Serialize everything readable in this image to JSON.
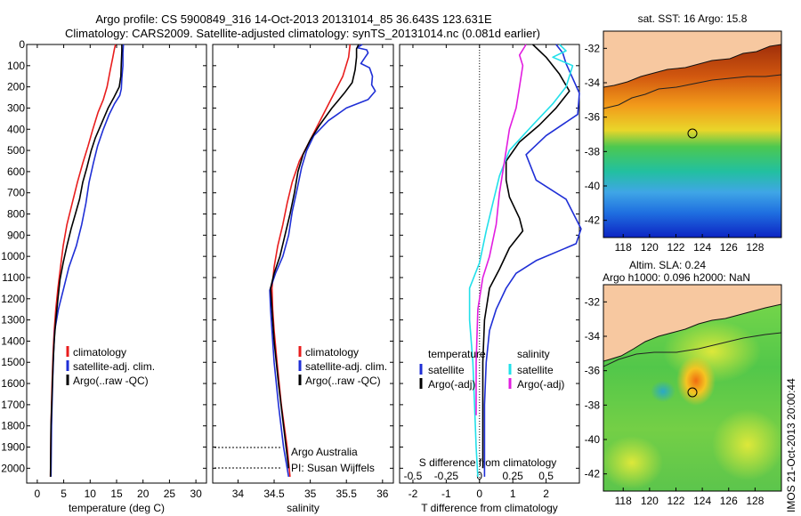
{
  "header": {
    "title_line1": "Argo profile: CS 5900849_316 14-Oct-2013 20131014_85 36.643S 123.631E",
    "title_line2": "Climatology: CARS2009. Satellite-adjusted climatology: synTS_20131014.nc (0.081d earlier)"
  },
  "colors": {
    "climatology": "#e81d1d",
    "satellite": "#1f2fd6",
    "argo": "#000000",
    "s_satellite": "#22e0ea",
    "s_argo": "#e21de0",
    "land": "#f7c8a0"
  },
  "chart_data": [
    {
      "type": "line",
      "panel": "temperature",
      "xlabel": "temperature (deg C)",
      "xlim": [
        -2,
        32
      ],
      "xticks": [
        0,
        5,
        10,
        15,
        20,
        25,
        30
      ],
      "ylim": [
        2070,
        0
      ],
      "yticks": [
        0,
        100,
        200,
        300,
        400,
        500,
        600,
        700,
        800,
        900,
        1000,
        1100,
        1200,
        1300,
        1400,
        1500,
        1600,
        1700,
        1800,
        1900,
        2000
      ],
      "legend": [
        "climatology",
        "satellite-adj. clim.",
        "Argo(..raw -QC)"
      ],
      "series": [
        {
          "name": "climatology",
          "color_key": "climatology",
          "points": [
            [
              14.8,
              0
            ],
            [
              14.6,
              20
            ],
            [
              14.3,
              60
            ],
            [
              13.8,
              120
            ],
            [
              13.2,
              200
            ],
            [
              12.5,
              260
            ],
            [
              11.5,
              320
            ],
            [
              10.5,
              400
            ],
            [
              9.6,
              480
            ],
            [
              8.6,
              560
            ],
            [
              7.6,
              650
            ],
            [
              6.6,
              750
            ],
            [
              5.6,
              850
            ],
            [
              4.9,
              950
            ],
            [
              4.4,
              1050
            ],
            [
              3.9,
              1150
            ],
            [
              3.5,
              1250
            ],
            [
              3.2,
              1350
            ],
            [
              3.0,
              1450
            ],
            [
              2.8,
              1600
            ],
            [
              2.6,
              1800
            ],
            [
              2.5,
              2040
            ]
          ]
        },
        {
          "name": "satellite-adj. clim.",
          "color_key": "satellite",
          "points": [
            [
              16.3,
              0
            ],
            [
              16.2,
              40
            ],
            [
              16.2,
              100
            ],
            [
              16.0,
              160
            ],
            [
              15.9,
              210
            ],
            [
              15.6,
              240
            ],
            [
              14.6,
              280
            ],
            [
              13.6,
              330
            ],
            [
              12.5,
              400
            ],
            [
              11.4,
              480
            ],
            [
              10.6,
              560
            ],
            [
              9.8,
              650
            ],
            [
              9.2,
              750
            ],
            [
              8.4,
              850
            ],
            [
              7.4,
              950
            ],
            [
              6.0,
              1050
            ],
            [
              5.0,
              1150
            ],
            [
              4.0,
              1250
            ],
            [
              3.3,
              1350
            ],
            [
              3.1,
              1450
            ],
            [
              2.9,
              1600
            ],
            [
              2.7,
              1800
            ],
            [
              2.6,
              2040
            ]
          ]
        },
        {
          "name": "Argo(..raw -QC)",
          "color_key": "argo",
          "points": [
            [
              16.0,
              0
            ],
            [
              16.0,
              30
            ],
            [
              15.9,
              90
            ],
            [
              15.8,
              150
            ],
            [
              15.5,
              200
            ],
            [
              14.5,
              250
            ],
            [
              13.4,
              300
            ],
            [
              12.2,
              370
            ],
            [
              11.0,
              440
            ],
            [
              10.2,
              500
            ],
            [
              9.4,
              580
            ],
            [
              8.6,
              650
            ],
            [
              8.0,
              730
            ],
            [
              7.2,
              800
            ],
            [
              6.4,
              870
            ],
            [
              5.6,
              950
            ],
            [
              4.9,
              1030
            ],
            [
              4.3,
              1110
            ],
            [
              3.9,
              1200
            ],
            [
              3.5,
              1300
            ],
            [
              3.2,
              1400
            ],
            [
              3.0,
              1500
            ],
            [
              2.8,
              1650
            ],
            [
              2.6,
              1800
            ],
            [
              2.5,
              2040
            ]
          ]
        }
      ]
    },
    {
      "type": "line",
      "panel": "salinity",
      "xlabel": "salinity",
      "xlim": [
        33.65,
        36.15
      ],
      "xticks": [
        34,
        34.5,
        35,
        35.5,
        36
      ],
      "xtick_labels": [
        "34",
        "34.5",
        "35",
        "35.5",
        "36"
      ],
      "ylim": [
        2070,
        0
      ],
      "legend": [
        "climatology",
        "satellite-adj. clim.",
        "Argo(..raw -QC)"
      ],
      "annotations": [
        "Argo Australia",
        "PI: Susan Wijffels"
      ],
      "series": [
        {
          "name": "climatology",
          "color_key": "climatology",
          "points": [
            [
              35.55,
              0
            ],
            [
              35.53,
              60
            ],
            [
              35.45,
              150
            ],
            [
              35.3,
              250
            ],
            [
              35.15,
              350
            ],
            [
              35.0,
              450
            ],
            [
              34.85,
              550
            ],
            [
              34.75,
              650
            ],
            [
              34.68,
              750
            ],
            [
              34.62,
              850
            ],
            [
              34.55,
              950
            ],
            [
              34.5,
              1050
            ],
            [
              34.47,
              1150
            ],
            [
              34.48,
              1250
            ],
            [
              34.5,
              1350
            ],
            [
              34.54,
              1500
            ],
            [
              34.6,
              1700
            ],
            [
              34.68,
              1900
            ],
            [
              34.72,
              2040
            ]
          ]
        },
        {
          "name": "satellite-adj. clim.",
          "color_key": "satellite",
          "points": [
            [
              35.72,
              0
            ],
            [
              35.65,
              15
            ],
            [
              35.78,
              25
            ],
            [
              35.8,
              40
            ],
            [
              35.76,
              60
            ],
            [
              35.7,
              90
            ],
            [
              35.82,
              110
            ],
            [
              35.86,
              150
            ],
            [
              35.85,
              190
            ],
            [
              35.9,
              220
            ],
            [
              35.8,
              260
            ],
            [
              35.5,
              300
            ],
            [
              35.25,
              360
            ],
            [
              35.05,
              430
            ],
            [
              34.95,
              500
            ],
            [
              34.88,
              580
            ],
            [
              34.82,
              680
            ],
            [
              34.75,
              790
            ],
            [
              34.7,
              900
            ],
            [
              34.62,
              1000
            ],
            [
              34.52,
              1080
            ],
            [
              34.44,
              1160
            ],
            [
              34.45,
              1250
            ],
            [
              34.47,
              1350
            ],
            [
              34.5,
              1500
            ],
            [
              34.56,
              1700
            ],
            [
              34.63,
              1900
            ],
            [
              34.7,
              2040
            ]
          ]
        },
        {
          "name": "Argo(..raw -QC)",
          "color_key": "argo",
          "points": [
            [
              35.67,
              0
            ],
            [
              35.64,
              20
            ],
            [
              35.64,
              60
            ],
            [
              35.62,
              120
            ],
            [
              35.58,
              180
            ],
            [
              35.47,
              230
            ],
            [
              35.3,
              300
            ],
            [
              35.13,
              380
            ],
            [
              35.0,
              450
            ],
            [
              34.9,
              520
            ],
            [
              34.83,
              600
            ],
            [
              34.78,
              700
            ],
            [
              34.72,
              800
            ],
            [
              34.65,
              900
            ],
            [
              34.58,
              1000
            ],
            [
              34.5,
              1080
            ],
            [
              34.45,
              1150
            ],
            [
              34.47,
              1250
            ],
            [
              34.5,
              1400
            ],
            [
              34.56,
              1600
            ],
            [
              34.63,
              1800
            ],
            [
              34.7,
              2000
            ]
          ]
        }
      ]
    },
    {
      "type": "line",
      "panel": "difference",
      "xlabel_top": "S difference from climatology",
      "xlabel": "T difference from climatology",
      "xlim": [
        -2.4,
        3.0
      ],
      "xticks": [
        -2,
        -1,
        0,
        1,
        2
      ],
      "s_ticks": [
        "-0.5",
        "-0.25",
        "0",
        "0.25",
        "0.5"
      ],
      "s_tick_values": [
        -2,
        -1,
        0,
        1,
        2
      ],
      "ylim": [
        2070,
        0
      ],
      "legend_left_title": "temperature",
      "legend_right_title": "salinity",
      "legend_items": [
        {
          "label": "satellite",
          "color_key": "satellite"
        },
        {
          "label": "Argo(-adj)",
          "color_key": "argo"
        },
        {
          "label": "satellite",
          "color_key": "s_satellite"
        },
        {
          "label": "Argo(-adj)",
          "color_key": "s_argo"
        }
      ],
      "series": [
        {
          "name": "T satellite",
          "color_key": "satellite",
          "points": [
            [
              2.3,
              0
            ],
            [
              2.5,
              40
            ],
            [
              2.6,
              90
            ],
            [
              2.8,
              160
            ],
            [
              3.0,
              230
            ],
            [
              2.95,
              330
            ],
            [
              2.0,
              430
            ],
            [
              1.4,
              520
            ],
            [
              1.7,
              640
            ],
            [
              2.6,
              730
            ],
            [
              3.05,
              870
            ],
            [
              2.9,
              940
            ],
            [
              1.7,
              1020
            ],
            [
              1.1,
              1080
            ],
            [
              0.8,
              1150
            ],
            [
              0.5,
              1250
            ],
            [
              0.3,
              1350
            ],
            [
              0.2,
              1500
            ],
            [
              0.15,
              1700
            ],
            [
              0.15,
              1900
            ],
            [
              0.15,
              2040
            ]
          ]
        },
        {
          "name": "T Argo(-adj)",
          "color_key": "argo",
          "points": [
            [
              1.6,
              0
            ],
            [
              2.0,
              60
            ],
            [
              2.4,
              140
            ],
            [
              2.7,
              220
            ],
            [
              2.3,
              300
            ],
            [
              1.8,
              380
            ],
            [
              1.2,
              460
            ],
            [
              0.8,
              550
            ],
            [
              0.8,
              640
            ],
            [
              0.9,
              720
            ],
            [
              1.2,
              820
            ],
            [
              1.3,
              880
            ],
            [
              0.9,
              960
            ],
            [
              0.6,
              1060
            ],
            [
              0.3,
              1150
            ],
            [
              0.15,
              1300
            ],
            [
              0.1,
              1500
            ],
            [
              0.1,
              1700
            ],
            [
              0.1,
              1900
            ],
            [
              0.1,
              2000
            ]
          ]
        },
        {
          "name": "S satellite",
          "color_key": "s_satellite",
          "points": [
            [
              2.4,
              0
            ],
            [
              2.6,
              30
            ],
            [
              2.2,
              60
            ],
            [
              2.8,
              100
            ],
            [
              2.6,
              200
            ],
            [
              2.2,
              280
            ],
            [
              1.6,
              380
            ],
            [
              0.9,
              500
            ],
            [
              0.6,
              620
            ],
            [
              0.4,
              750
            ],
            [
              0.2,
              880
            ],
            [
              0.0,
              1030
            ],
            [
              -0.3,
              1150
            ],
            [
              -0.3,
              1300
            ],
            [
              -0.2,
              1500
            ],
            [
              -0.15,
              1700
            ],
            [
              -0.1,
              1900
            ],
            [
              -0.05,
              2040
            ]
          ]
        },
        {
          "name": "S Argo(-adj)",
          "color_key": "s_argo",
          "points": [
            [
              1.4,
              0
            ],
            [
              1.2,
              50
            ],
            [
              1.3,
              100
            ],
            [
              1.2,
              200
            ],
            [
              1.1,
              300
            ],
            [
              0.9,
              400
            ],
            [
              0.8,
              500
            ],
            [
              0.7,
              600
            ],
            [
              0.6,
              700
            ],
            [
              0.5,
              850
            ],
            [
              0.3,
              1000
            ],
            [
              0.1,
              1100
            ],
            [
              -0.05,
              1250
            ],
            [
              -0.1,
              1500
            ],
            [
              -0.1,
              1750
            ]
          ]
        }
      ]
    },
    {
      "type": "heatmap",
      "panel": "sst_map",
      "title": "sat. SST: 16 Argo: 15.8",
      "xticks": [
        "118",
        "120",
        "122",
        "124",
        "126",
        "128"
      ],
      "yticks": [
        "-32",
        "-34",
        "-36",
        "-38",
        "-40",
        "-42"
      ],
      "xlim": [
        116.5,
        130
      ],
      "ylim": [
        -43,
        -31
      ],
      "marker": {
        "lon": 123.631,
        "lat": -36.643
      }
    },
    {
      "type": "heatmap",
      "panel": "sla_map",
      "title_line1": "Altim. SLA: 0.24",
      "title_line2": "Argo h1000: 0.096 h2000: NaN",
      "xticks": [
        "118",
        "120",
        "122",
        "124",
        "126",
        "128"
      ],
      "yticks": [
        "-32",
        "-34",
        "-36",
        "-38",
        "-40",
        "-42"
      ],
      "xlim": [
        116.5,
        130
      ],
      "ylim": [
        -43,
        -31
      ],
      "marker": {
        "lon": 123.631,
        "lat": -36.643
      }
    }
  ],
  "footer": {
    "imos_stamp": "IMOS 21-Oct-2013 20:00:44"
  }
}
